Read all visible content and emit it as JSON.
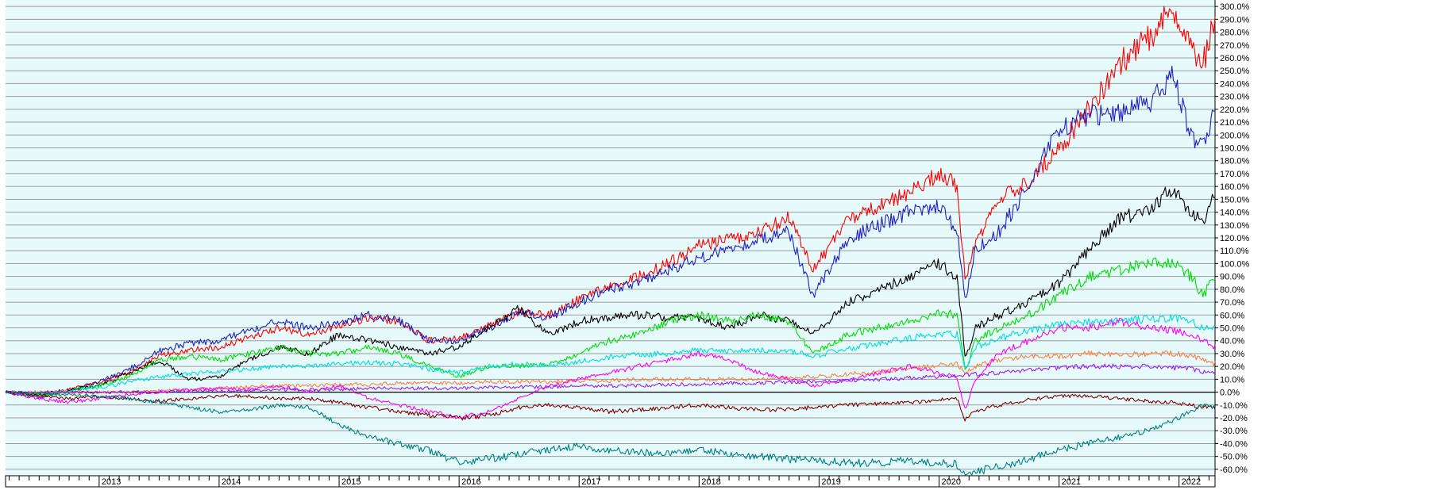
{
  "chart_data": {
    "type": "line",
    "title": "",
    "xlabel": "",
    "ylabel": "",
    "grid": true,
    "legend": "none",
    "background": "#e6fafc",
    "ylim": [
      -65,
      305
    ],
    "y_unit": "%",
    "y_ticks": [
      "300.0%",
      "290.0%",
      "280.0%",
      "270.0%",
      "260.0%",
      "250.0%",
      "240.0%",
      "230.0%",
      "220.0%",
      "210.0%",
      "200.0%",
      "190.0%",
      "180.0%",
      "170.0%",
      "160.0%",
      "150.0%",
      "140.0%",
      "130.0%",
      "120.0%",
      "110.0%",
      "100.0%",
      "90.0%",
      "80.0%",
      "70.0%",
      "60.0%",
      "50.0%",
      "40.0%",
      "30.0%",
      "20.0%",
      "10.0%",
      "0.0%",
      "-10.0%",
      "-20.0%",
      "-30.0%",
      "-40.0%",
      "-50.0%",
      "-60.0%"
    ],
    "y_tick_values": [
      300,
      290,
      280,
      270,
      260,
      250,
      240,
      230,
      220,
      210,
      200,
      190,
      180,
      170,
      160,
      150,
      140,
      130,
      120,
      110,
      100,
      90,
      80,
      70,
      60,
      50,
      40,
      30,
      20,
      10,
      0,
      -10,
      -20,
      -30,
      -40,
      -50,
      -60
    ],
    "x_domain": [
      2012.22,
      2022.3
    ],
    "x_ticks": [
      {
        "label": "2013",
        "x": 2013
      },
      {
        "label": "2014",
        "x": 2014
      },
      {
        "label": "2015",
        "x": 2015
      },
      {
        "label": "2016",
        "x": 2016
      },
      {
        "label": "2017",
        "x": 2017
      },
      {
        "label": "2018",
        "x": 2018
      },
      {
        "label": "2019",
        "x": 2019
      },
      {
        "label": "2020",
        "x": 2020
      },
      {
        "label": "2021",
        "x": 2021
      },
      {
        "label": "2022",
        "x": 2022
      }
    ],
    "x": [
      2012.22,
      2012.5,
      2012.75,
      2013.0,
      2013.25,
      2013.5,
      2013.75,
      2014.0,
      2014.25,
      2014.5,
      2014.75,
      2015.0,
      2015.25,
      2015.5,
      2015.75,
      2016.0,
      2016.25,
      2016.5,
      2016.75,
      2017.0,
      2017.25,
      2017.5,
      2017.75,
      2018.0,
      2018.25,
      2018.5,
      2018.75,
      2018.95,
      2019.25,
      2019.5,
      2019.75,
      2020.0,
      2020.15,
      2020.22,
      2020.3,
      2020.5,
      2020.75,
      2021.0,
      2021.25,
      2021.5,
      2021.75,
      2021.95,
      2022.1,
      2022.2,
      2022.3
    ],
    "series": [
      {
        "color": "#ff0000",
        "values": [
          0,
          -3,
          2,
          8,
          15,
          28,
          33,
          35,
          42,
          50,
          45,
          52,
          58,
          55,
          40,
          42,
          52,
          62,
          60,
          72,
          82,
          90,
          100,
          115,
          118,
          125,
          135,
          95,
          135,
          145,
          155,
          170,
          160,
          85,
          115,
          150,
          165,
          190,
          220,
          255,
          275,
          300,
          270,
          255,
          290
        ]
      },
      {
        "color": "#2020c0",
        "values": [
          0,
          -4,
          1,
          8,
          18,
          32,
          38,
          40,
          48,
          55,
          50,
          55,
          60,
          56,
          40,
          40,
          50,
          62,
          58,
          70,
          80,
          85,
          95,
          105,
          110,
          120,
          125,
          75,
          120,
          130,
          140,
          145,
          125,
          70,
          110,
          125,
          160,
          205,
          215,
          218,
          225,
          245,
          200,
          190,
          220
        ]
      },
      {
        "color": "#000000",
        "values": [
          0,
          -2,
          2,
          5,
          15,
          25,
          10,
          12,
          25,
          35,
          30,
          45,
          40,
          35,
          30,
          35,
          50,
          65,
          45,
          55,
          58,
          60,
          58,
          58,
          50,
          60,
          55,
          45,
          70,
          80,
          90,
          100,
          90,
          25,
          50,
          60,
          70,
          85,
          110,
          135,
          140,
          160,
          140,
          130,
          155
        ]
      },
      {
        "color": "#00dd00",
        "values": [
          0,
          -3,
          1,
          5,
          12,
          25,
          28,
          25,
          30,
          35,
          30,
          30,
          35,
          30,
          20,
          12,
          20,
          20,
          22,
          30,
          40,
          45,
          55,
          60,
          55,
          60,
          55,
          30,
          45,
          50,
          55,
          62,
          60,
          15,
          40,
          50,
          60,
          75,
          90,
          95,
          100,
          100,
          90,
          75,
          90
        ]
      },
      {
        "color": "#00dddd",
        "values": [
          0,
          -1,
          1,
          3,
          8,
          12,
          14,
          16,
          18,
          20,
          20,
          22,
          23,
          22,
          18,
          15,
          20,
          22,
          20,
          24,
          27,
          29,
          30,
          33,
          32,
          33,
          32,
          28,
          34,
          38,
          42,
          45,
          45,
          18,
          35,
          42,
          48,
          52,
          55,
          55,
          57,
          58,
          55,
          50,
          52
        ]
      },
      {
        "color": "#ff8040",
        "values": [
          0,
          0,
          0,
          0,
          0,
          1,
          2,
          3,
          4,
          5,
          5,
          6,
          6,
          7,
          7,
          7,
          8,
          8,
          8,
          9,
          9,
          10,
          10,
          10,
          10,
          10,
          11,
          12,
          14,
          16,
          18,
          21,
          22,
          15,
          20,
          25,
          28,
          28,
          30,
          29,
          30,
          30,
          28,
          25,
          22
        ]
      },
      {
        "color": "#ff00ff",
        "values": [
          0,
          -5,
          -8,
          -5,
          -2,
          0,
          2,
          3,
          2,
          5,
          0,
          5,
          -5,
          -10,
          -15,
          -20,
          -15,
          -5,
          5,
          10,
          15,
          20,
          25,
          30,
          25,
          15,
          10,
          5,
          10,
          15,
          20,
          15,
          12,
          -15,
          10,
          30,
          40,
          50,
          50,
          55,
          50,
          48,
          45,
          40,
          35
        ]
      },
      {
        "color": "#a020f0",
        "values": [
          0,
          0,
          0,
          0,
          0,
          0,
          1,
          1,
          1,
          2,
          2,
          2,
          3,
          3,
          3,
          3,
          4,
          4,
          4,
          5,
          5,
          5,
          6,
          6,
          7,
          7,
          8,
          8,
          9,
          10,
          11,
          12,
          13,
          13,
          14,
          15,
          17,
          19,
          20,
          20,
          20,
          19,
          18,
          16,
          15
        ]
      },
      {
        "color": "#800000",
        "values": [
          0,
          -2,
          -5,
          -3,
          -5,
          -7,
          -5,
          -3,
          -3,
          -5,
          -5,
          -8,
          -12,
          -15,
          -18,
          -20,
          -18,
          -12,
          -10,
          -12,
          -15,
          -14,
          -12,
          -10,
          -12,
          -14,
          -13,
          -12,
          -10,
          -9,
          -8,
          -6,
          -5,
          -22,
          -15,
          -10,
          -6,
          -3,
          -3,
          -5,
          -7,
          -8,
          -10,
          -12,
          -12
        ]
      },
      {
        "color": "#008080",
        "values": [
          0,
          -1,
          -2,
          -3,
          -5,
          -8,
          -12,
          -15,
          -14,
          -10,
          -12,
          -25,
          -35,
          -40,
          -45,
          -55,
          -52,
          -48,
          -45,
          -42,
          -45,
          -47,
          -48,
          -45,
          -48,
          -50,
          -52,
          -53,
          -55,
          -55,
          -53,
          -55,
          -56,
          -65,
          -62,
          -58,
          -52,
          -45,
          -40,
          -35,
          -30,
          -22,
          -15,
          -10,
          -12
        ]
      }
    ]
  }
}
